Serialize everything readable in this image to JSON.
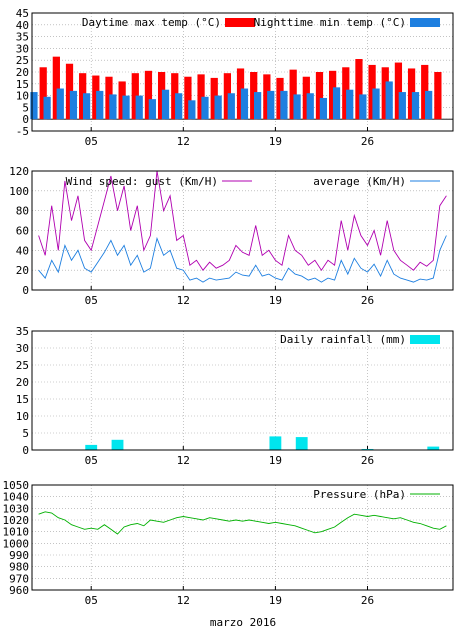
{
  "footer": {
    "month_label": "marzo 2016"
  },
  "chart_data": [
    {
      "type": "bar",
      "x_ticks": [
        "05",
        "12",
        "19",
        "26"
      ],
      "x_tick_days": [
        5,
        12,
        19,
        26
      ],
      "ylim": [
        -5,
        45
      ],
      "y_ticks": [
        -5,
        0,
        5,
        10,
        15,
        20,
        25,
        30,
        35,
        40,
        45
      ],
      "grid": true,
      "legend_position": "top",
      "series": [
        {
          "name": "Daytime max temp (°C)",
          "color": "#ff0000",
          "values": [
            22,
            26.5,
            23.5,
            19.5,
            18.5,
            18,
            16,
            19.5,
            20.5,
            20,
            19.5,
            18,
            19,
            17.5,
            19.5,
            21.5,
            20,
            19,
            17.5,
            21,
            18,
            20,
            20.5,
            22,
            25.5,
            23,
            22,
            24,
            21.5,
            23,
            20
          ]
        },
        {
          "name": "Nighttime min temp (°C)",
          "color": "#1e7fe0",
          "values": [
            11.5,
            9.5,
            13,
            12,
            11,
            12,
            10.5,
            10,
            10,
            8.5,
            12.5,
            11,
            8,
            9.5,
            10,
            11,
            13,
            11.5,
            12,
            12,
            10.5,
            11,
            9,
            13.5,
            12.5,
            10.5,
            13,
            16,
            11.5,
            11.5,
            12
          ]
        }
      ]
    },
    {
      "type": "line",
      "x_ticks": [
        "05",
        "12",
        "19",
        "26"
      ],
      "x_tick_days": [
        5,
        12,
        19,
        26
      ],
      "ylim": [
        0,
        120
      ],
      "y_ticks": [
        0,
        20,
        40,
        60,
        80,
        100,
        120
      ],
      "grid": true,
      "series": [
        {
          "name": "Wind speed: gust (Km/H)",
          "color": "#b000b0",
          "x": [
            1.0,
            1.5,
            2.0,
            2.5,
            3.0,
            3.5,
            4.0,
            4.5,
            5.0,
            5.5,
            6.0,
            6.5,
            7.0,
            7.5,
            8.0,
            8.5,
            9.0,
            9.5,
            10.0,
            10.5,
            11.0,
            11.5,
            12.0,
            12.5,
            13.0,
            13.5,
            14.0,
            14.5,
            15.0,
            15.5,
            16.0,
            16.5,
            17.0,
            17.5,
            18.0,
            18.5,
            19.0,
            19.5,
            20.0,
            20.5,
            21.0,
            21.5,
            22.0,
            22.5,
            23.0,
            23.5,
            24.0,
            24.5,
            25.0,
            25.5,
            26.0,
            26.5,
            27.0,
            27.5,
            28.0,
            28.5,
            29.0,
            29.5,
            30.0,
            30.5,
            31.0,
            31.5,
            32.0
          ],
          "y": [
            55,
            35,
            85,
            40,
            110,
            70,
            95,
            50,
            40,
            65,
            90,
            115,
            80,
            105,
            60,
            85,
            40,
            55,
            120,
            80,
            95,
            50,
            55,
            25,
            30,
            20,
            28,
            22,
            25,
            30,
            45,
            38,
            35,
            65,
            35,
            40,
            30,
            25,
            55,
            40,
            35,
            25,
            30,
            20,
            30,
            25,
            70,
            40,
            75,
            55,
            45,
            60,
            35,
            70,
            40,
            30,
            25,
            20,
            28,
            24,
            30,
            85,
            95
          ]
        },
        {
          "name": "average (Km/H)",
          "color": "#1e7fe0",
          "x": [
            1.0,
            1.5,
            2.0,
            2.5,
            3.0,
            3.5,
            4.0,
            4.5,
            5.0,
            5.5,
            6.0,
            6.5,
            7.0,
            7.5,
            8.0,
            8.5,
            9.0,
            9.5,
            10.0,
            10.5,
            11.0,
            11.5,
            12.0,
            12.5,
            13.0,
            13.5,
            14.0,
            14.5,
            15.0,
            15.5,
            16.0,
            16.5,
            17.0,
            17.5,
            18.0,
            18.5,
            19.0,
            19.5,
            20.0,
            20.5,
            21.0,
            21.5,
            22.0,
            22.5,
            23.0,
            23.5,
            24.0,
            24.5,
            25.0,
            25.5,
            26.0,
            26.5,
            27.0,
            27.5,
            28.0,
            28.5,
            29.0,
            29.5,
            30.0,
            30.5,
            31.0,
            31.5,
            32.0
          ],
          "y": [
            20,
            12,
            30,
            18,
            45,
            30,
            40,
            22,
            18,
            28,
            38,
            50,
            35,
            45,
            25,
            35,
            18,
            22,
            52,
            35,
            40,
            22,
            20,
            10,
            12,
            8,
            12,
            10,
            11,
            12,
            18,
            15,
            14,
            25,
            14,
            16,
            12,
            10,
            22,
            16,
            14,
            10,
            12,
            8,
            12,
            10,
            30,
            16,
            32,
            22,
            18,
            26,
            14,
            30,
            16,
            12,
            10,
            8,
            11,
            10,
            12,
            40,
            55
          ]
        }
      ]
    },
    {
      "type": "bar",
      "x_ticks": [
        "05",
        "12",
        "19",
        "26"
      ],
      "x_tick_days": [
        5,
        12,
        19,
        26
      ],
      "ylim": [
        0,
        35
      ],
      "y_ticks": [
        0,
        5,
        10,
        15,
        20,
        25,
        30,
        35
      ],
      "grid": true,
      "series": [
        {
          "name": "Daily rainfall (mm)",
          "color": "#00e5ee",
          "days": [
            5,
            7,
            19,
            21,
            26,
            31
          ],
          "values": [
            1.5,
            3,
            4,
            3.8,
            0.3,
            1
          ]
        }
      ]
    },
    {
      "type": "line",
      "x_ticks": [
        "05",
        "12",
        "19",
        "26"
      ],
      "x_tick_days": [
        5,
        12,
        19,
        26
      ],
      "ylim": [
        960,
        1050
      ],
      "y_ticks": [
        960,
        970,
        980,
        990,
        1000,
        1010,
        1020,
        1030,
        1040,
        1050
      ],
      "grid": true,
      "series": [
        {
          "name": "Pressure (hPa)",
          "color": "#00b000",
          "x": [
            1.0,
            1.5,
            2.0,
            2.5,
            3.0,
            3.5,
            4.0,
            4.5,
            5.0,
            5.5,
            6.0,
            6.5,
            7.0,
            7.5,
            8.0,
            8.5,
            9.0,
            9.5,
            10.0,
            10.5,
            11.0,
            11.5,
            12.0,
            12.5,
            13.0,
            13.5,
            14.0,
            14.5,
            15.0,
            15.5,
            16.0,
            16.5,
            17.0,
            17.5,
            18.0,
            18.5,
            19.0,
            19.5,
            20.0,
            20.5,
            21.0,
            21.5,
            22.0,
            22.5,
            23.0,
            23.5,
            24.0,
            24.5,
            25.0,
            25.5,
            26.0,
            26.5,
            27.0,
            27.5,
            28.0,
            28.5,
            29.0,
            29.5,
            30.0,
            30.5,
            31.0,
            31.5,
            32.0
          ],
          "y": [
            1025,
            1027,
            1026,
            1022,
            1020,
            1016,
            1014,
            1012,
            1013,
            1012,
            1016,
            1012,
            1008,
            1014,
            1016,
            1017,
            1015,
            1020,
            1019,
            1018,
            1020,
            1022,
            1023,
            1022,
            1021,
            1020,
            1022,
            1021,
            1020,
            1019,
            1020,
            1019,
            1020,
            1019,
            1018,
            1017,
            1018,
            1017,
            1016,
            1015,
            1013,
            1011,
            1009,
            1010,
            1012,
            1014,
            1018,
            1022,
            1025,
            1024,
            1023,
            1024,
            1023,
            1022,
            1021,
            1022,
            1020,
            1018,
            1017,
            1015,
            1013,
            1012,
            1015
          ]
        }
      ]
    }
  ]
}
